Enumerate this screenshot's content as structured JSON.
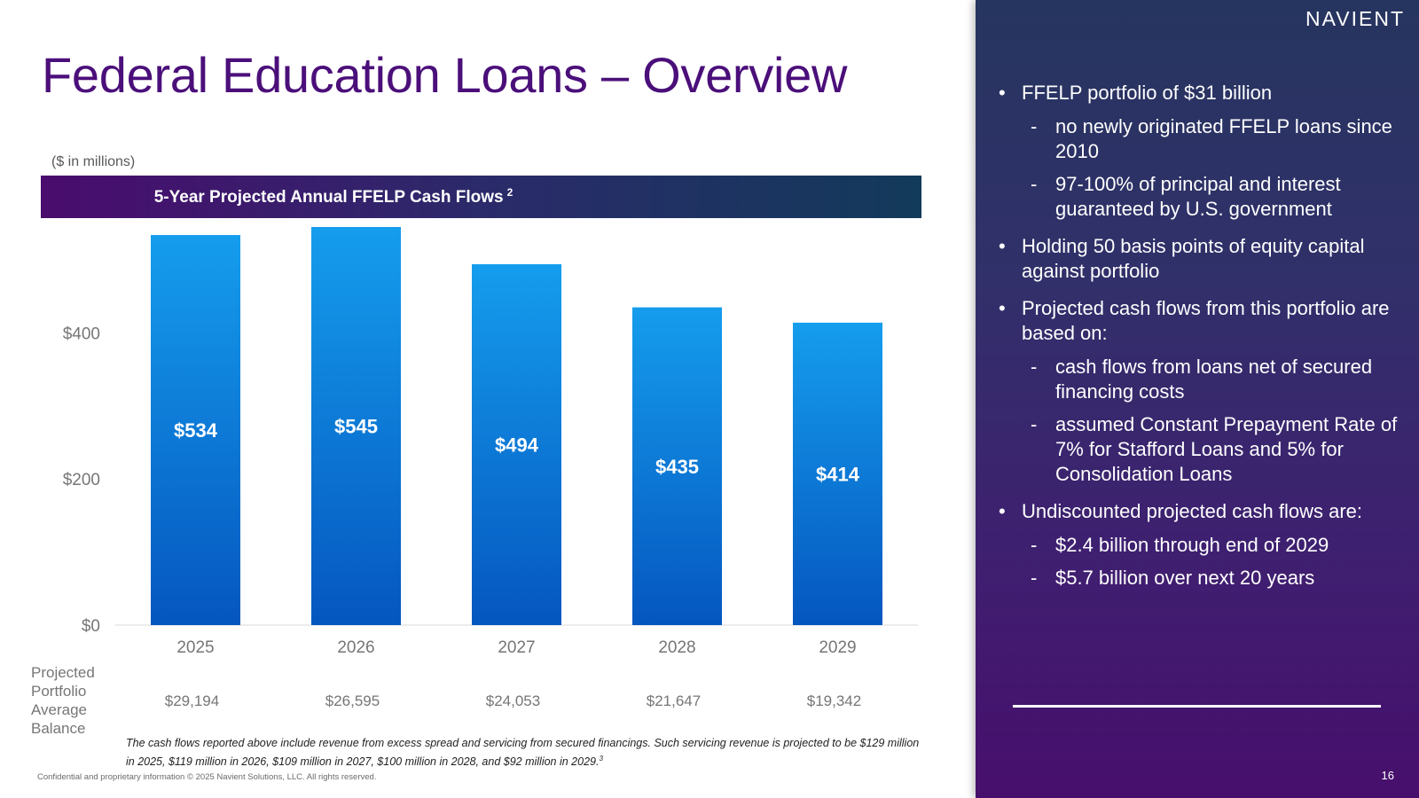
{
  "title": "Federal Education Loans – Overview",
  "units_note": "($ in millions)",
  "banner": {
    "title": "5-Year Projected Annual FFELP Cash Flows",
    "sup": "2"
  },
  "balance_label": "Projected Portfolio Average Balance",
  "footnote": {
    "text": "The cash flows reported above include revenue from excess spread and servicing from secured financings. Such servicing revenue is projected to be $129 million in 2025, $119 million in 2026, $109 million in 2027, $100 million in 2028, and $92 million in 2029.",
    "sup": "3"
  },
  "confidential": "Confidential and proprietary information  © 2025 Navient Solutions, LLC. All rights reserved.",
  "panel": {
    "logo": "NAVIENT",
    "page_number": "16",
    "b1": "FFELP portfolio of $31 billion",
    "b1_s1": "no newly originated FFELP loans since 2010",
    "b1_s2": "97-100% of principal and interest guaranteed by U.S. government",
    "b2": "Holding 50 basis points of equity capital against portfolio",
    "b3": "Projected cash flows from this portfolio are based on:",
    "b3_s1": "cash flows from loans net of secured financing costs",
    "b3_s2": "assumed Constant Prepayment Rate of 7% for Stafford Loans and 5% for Consolidation Loans",
    "b4": "Undiscounted projected cash flows are:",
    "b4_s1": "$2.4 billion through end of 2029",
    "b4_s2": "$5.7 billion over next 20 years"
  },
  "colors": {
    "bar_top": "#159ded",
    "bar_bottom": "#0556bf",
    "title": "#4b0f7a"
  },
  "chart_data": {
    "type": "bar",
    "title": "5-Year Projected Annual FFELP Cash Flows",
    "ylabel": "($ in millions)",
    "categories": [
      "2025",
      "2026",
      "2027",
      "2028",
      "2029"
    ],
    "values": [
      534,
      545,
      494,
      435,
      414
    ],
    "data_labels": [
      "$534",
      "$545",
      "$494",
      "$435",
      "$414"
    ],
    "yticks": [
      0,
      200,
      400
    ],
    "ytick_labels": [
      "$0",
      "$200",
      "$400"
    ],
    "ylim": [
      0,
      545
    ],
    "secondary_row": {
      "label": "Projected Portfolio Average Balance",
      "values": [
        "$29,194",
        "$26,595",
        "$24,053",
        "$21,647",
        "$19,342"
      ]
    },
    "grid": false,
    "legend": "none"
  }
}
